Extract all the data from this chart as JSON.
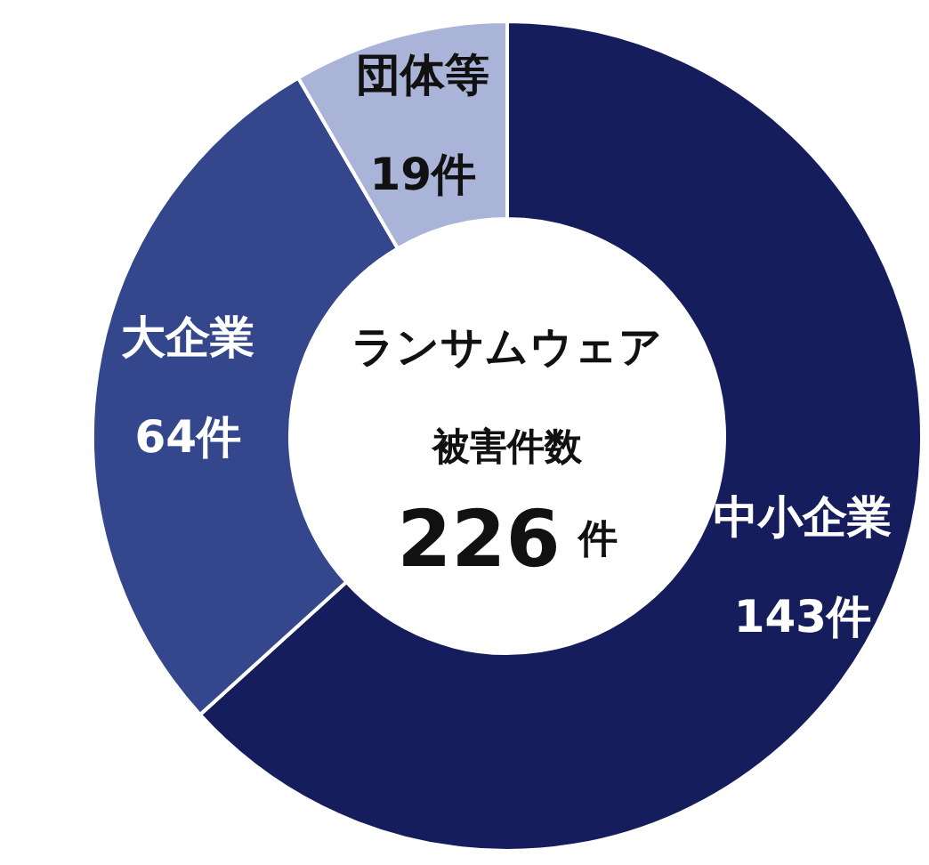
{
  "chart_data": {
    "type": "donut",
    "categories": [
      "中小企業",
      "大企業",
      "団体等"
    ],
    "values": [
      143,
      64,
      19
    ],
    "colors": [
      "#161d5c",
      "#34468c",
      "#aab4d8"
    ],
    "value_labels": [
      "143件",
      "64件",
      "19件"
    ],
    "annotations": [
      "ランサムウェア",
      "被害件数",
      "226 件"
    ]
  }
}
